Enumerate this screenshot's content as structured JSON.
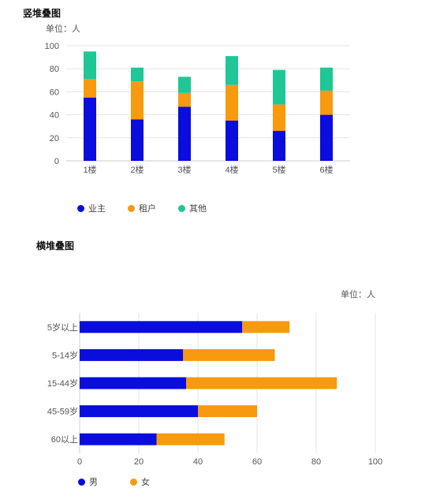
{
  "colors": {
    "owner": "#0a0ddd",
    "tenant": "#f79a0f",
    "other": "#1fc796",
    "male": "#0a0ddd",
    "female": "#f79a0f",
    "grid": "#e6e6e6",
    "axis": "#cccccc"
  },
  "chart_data": [
    {
      "type": "bar",
      "orientation": "vertical",
      "stacked": true,
      "title": "竖堆叠图",
      "unit_label": "单位：人",
      "categories": [
        "1楼",
        "2楼",
        "3楼",
        "4楼",
        "5楼",
        "6楼"
      ],
      "series": [
        {
          "name": "业主",
          "color_key": "owner",
          "values": [
            55,
            36,
            47,
            35,
            26,
            40
          ]
        },
        {
          "name": "租户",
          "color_key": "tenant",
          "values": [
            16,
            33,
            12,
            31,
            23,
            21
          ]
        },
        {
          "name": "其他",
          "color_key": "other",
          "values": [
            24,
            12,
            14,
            25,
            30,
            20
          ]
        }
      ],
      "ylim": [
        0,
        100
      ],
      "yticks": [
        0,
        20,
        40,
        60,
        80,
        100
      ],
      "grid": true,
      "legend_position": "bottom-left"
    },
    {
      "type": "bar",
      "orientation": "horizontal",
      "stacked": true,
      "title": "横堆叠图",
      "unit_label": "单位：人",
      "categories": [
        "5岁以上",
        "5-14岁",
        "15-44岁",
        "45-59岁",
        "60以上"
      ],
      "series": [
        {
          "name": "男",
          "color_key": "male",
          "values": [
            55,
            35,
            36,
            40,
            26
          ]
        },
        {
          "name": "女",
          "color_key": "female",
          "values": [
            16,
            31,
            51,
            20,
            23
          ]
        }
      ],
      "xlim": [
        0,
        100
      ],
      "xticks": [
        0,
        20,
        40,
        60,
        80,
        100
      ],
      "grid": true,
      "legend_position": "bottom-left"
    }
  ]
}
